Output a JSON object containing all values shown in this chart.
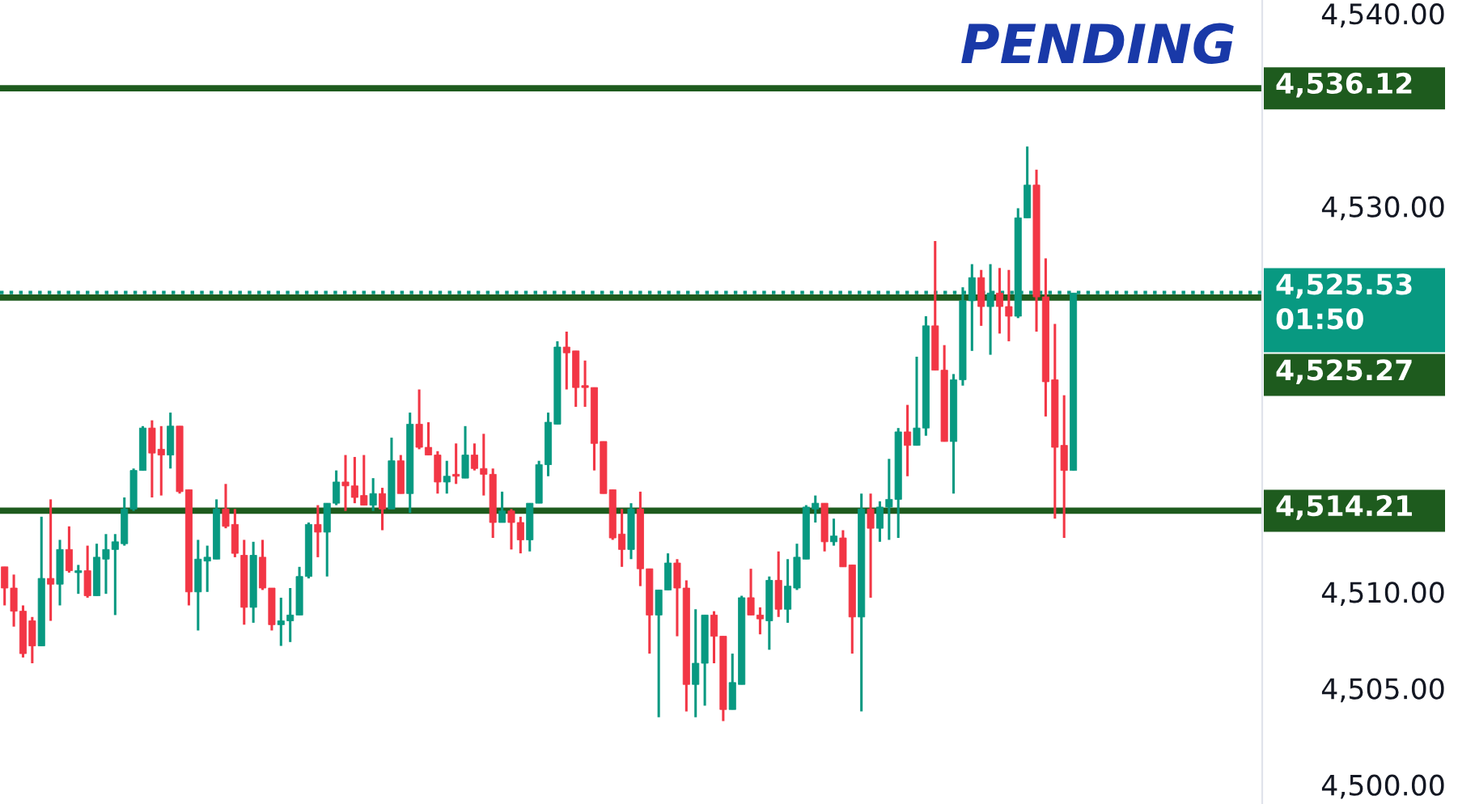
{
  "chart_data": {
    "type": "candlestick",
    "title": "PENDING",
    "categories": [
      null,
      null,
      null,
      null,
      null,
      null,
      null,
      null,
      null,
      null,
      null,
      null,
      null,
      null,
      null,
      null,
      null,
      null,
      null,
      null,
      null,
      null,
      null,
      null,
      null,
      null,
      null,
      null,
      null,
      null,
      null,
      null,
      null,
      null,
      null,
      null,
      null,
      null,
      null,
      null,
      null,
      null,
      null,
      null,
      null,
      null,
      null,
      null,
      null,
      null,
      null,
      null,
      null,
      null,
      null,
      null,
      null,
      null,
      null,
      null,
      null,
      null,
      null,
      null,
      null,
      null,
      null,
      null,
      null,
      null,
      null,
      null,
      null,
      null,
      null,
      null,
      null,
      null,
      null,
      null,
      null,
      null,
      null,
      null,
      null,
      null,
      null,
      null,
      null,
      null,
      null,
      null,
      null,
      null,
      null,
      null,
      null,
      null,
      null,
      null,
      null,
      null,
      null,
      null,
      null,
      null,
      null,
      null,
      null,
      null,
      null,
      null,
      null,
      null,
      null,
      null,
      null,
      null,
      null,
      null,
      null,
      null,
      null,
      null,
      null,
      null,
      null,
      null,
      null,
      null,
      null,
      null,
      null,
      null,
      null,
      null,
      null
    ],
    "ohlc": [
      [
        4511.3,
        4511.3,
        4509.3,
        4510.2
      ],
      [
        4510.2,
        4510.9,
        4508.2,
        4509.0
      ],
      [
        4509.0,
        4509.3,
        4506.6,
        4506.8
      ],
      [
        4508.5,
        4508.7,
        4506.3,
        4507.2
      ],
      [
        4507.2,
        4513.9,
        4507.2,
        4510.7
      ],
      [
        4510.7,
        4514.8,
        4508.5,
        4510.4
      ],
      [
        4510.4,
        4512.7,
        4509.3,
        4512.2
      ],
      [
        4512.2,
        4513.4,
        4511.0,
        4511.1
      ],
      [
        4511.0,
        4511.4,
        4509.9,
        4511.1
      ],
      [
        4511.1,
        4512.4,
        4509.7,
        4509.8
      ],
      [
        4509.8,
        4512.5,
        4509.8,
        4511.8
      ],
      [
        4511.7,
        4513.0,
        4509.9,
        4512.2
      ],
      [
        4512.2,
        4513.0,
        4508.8,
        4512.6
      ],
      [
        4512.5,
        4514.9,
        4512.4,
        4514.3
      ],
      [
        4514.3,
        4516.4,
        4514.2,
        4516.3
      ],
      [
        4516.3,
        4518.6,
        4516.3,
        4518.5
      ],
      [
        4518.5,
        4518.9,
        4514.9,
        4517.2
      ],
      [
        4517.4,
        4518.6,
        4515.0,
        4517.1
      ],
      [
        4517.1,
        4519.3,
        4516.4,
        4518.6
      ],
      [
        4518.6,
        4518.6,
        4515.1,
        4515.2
      ],
      [
        4515.3,
        4515.3,
        4509.3,
        4510.0
      ],
      [
        4510.0,
        4512.7,
        4508.0,
        4511.7
      ],
      [
        4511.6,
        4512.4,
        4510.0,
        4511.8
      ],
      [
        4511.7,
        4514.8,
        4511.7,
        4514.3
      ],
      [
        4514.3,
        4515.6,
        4513.3,
        4513.4
      ],
      [
        4513.5,
        4514.3,
        4511.8,
        4512.0
      ],
      [
        4511.9,
        4512.7,
        4508.3,
        4509.2
      ],
      [
        4509.2,
        4512.6,
        4508.4,
        4511.9
      ],
      [
        4511.8,
        4512.7,
        4510.1,
        4510.2
      ],
      [
        4510.2,
        4510.2,
        4508.0,
        4508.3
      ],
      [
        4508.3,
        4509.7,
        4507.2,
        4508.5
      ],
      [
        4508.5,
        4510.2,
        4507.4,
        4508.8
      ],
      [
        4508.8,
        4511.3,
        4508.8,
        4510.8
      ],
      [
        4510.8,
        4513.6,
        4510.7,
        4513.5
      ],
      [
        4513.5,
        4514.5,
        4511.8,
        4513.1
      ],
      [
        4513.1,
        4514.6,
        4510.8,
        4514.6
      ],
      [
        4514.6,
        4516.3,
        4514.5,
        4515.7
      ],
      [
        4515.7,
        4517.1,
        4514.2,
        4515.5
      ],
      [
        4515.5,
        4517.0,
        4514.6,
        4514.9
      ],
      [
        4515.0,
        4517.1,
        4514.5,
        4514.5
      ],
      [
        4514.5,
        4515.9,
        4514.2,
        4515.1
      ],
      [
        4515.1,
        4515.4,
        4513.2,
        4514.3
      ],
      [
        4514.3,
        4518.0,
        4514.3,
        4516.8
      ],
      [
        4516.8,
        4517.1,
        4515.1,
        4515.1
      ],
      [
        4515.1,
        4519.3,
        4514.1,
        4518.7
      ],
      [
        4518.7,
        4520.5,
        4517.4,
        4517.5
      ],
      [
        4517.5,
        4518.8,
        4517.1,
        4517.1
      ],
      [
        4517.1,
        4517.3,
        4515.1,
        4515.7
      ],
      [
        4515.7,
        4516.8,
        4515.1,
        4516.0
      ],
      [
        4516.1,
        4517.7,
        4515.6,
        4516.0
      ],
      [
        4515.9,
        4518.6,
        4515.9,
        4517.1
      ],
      [
        4517.1,
        4517.7,
        4516.3,
        4516.4
      ],
      [
        4516.4,
        4518.2,
        4515.0,
        4516.1
      ],
      [
        4516.1,
        4516.4,
        4512.8,
        4513.6
      ],
      [
        4513.6,
        4515.2,
        4513.6,
        4514.2
      ],
      [
        4514.2,
        4514.3,
        4512.2,
        4513.6
      ],
      [
        4513.6,
        4513.9,
        4512.0,
        4512.7
      ],
      [
        4512.7,
        4514.6,
        4512.1,
        4514.6
      ],
      [
        4514.6,
        4516.8,
        4514.6,
        4516.6
      ],
      [
        4516.6,
        4519.3,
        4516.0,
        4518.8
      ],
      [
        4518.7,
        4523.0,
        4518.7,
        4522.7
      ],
      [
        4522.7,
        4523.5,
        4520.5,
        4522.4
      ],
      [
        4522.5,
        4522.5,
        4519.6,
        4520.6
      ],
      [
        4520.7,
        4522.0,
        4519.6,
        4520.6
      ],
      [
        4520.6,
        4520.6,
        4516.3,
        4517.7
      ],
      [
        4517.8,
        4517.8,
        4515.1,
        4515.1
      ],
      [
        4515.3,
        4515.3,
        4512.7,
        4512.8
      ],
      [
        4513.0,
        4514.3,
        4511.3,
        4512.2
      ],
      [
        4512.2,
        4514.6,
        4511.7,
        4514.3
      ],
      [
        4514.3,
        4515.2,
        4510.3,
        4511.2
      ],
      [
        4511.2,
        4511.2,
        4506.8,
        4508.8
      ],
      [
        4508.8,
        4510.1,
        4503.5,
        4510.1
      ],
      [
        4510.1,
        4512.0,
        4510.1,
        4511.5
      ],
      [
        4511.5,
        4511.7,
        4507.7,
        4510.2
      ],
      [
        4510.2,
        4510.6,
        4503.8,
        4505.2
      ],
      [
        4505.2,
        4509.1,
        4503.5,
        4506.3
      ],
      [
        4506.3,
        4508.8,
        4504.1,
        4508.8
      ],
      [
        4508.8,
        4509.0,
        4506.3,
        4507.7
      ],
      [
        4507.7,
        4507.7,
        4503.3,
        4503.9
      ],
      [
        4503.9,
        4506.8,
        4503.9,
        4505.3
      ],
      [
        4505.2,
        4509.8,
        4505.2,
        4509.7
      ],
      [
        4509.7,
        4511.2,
        4508.8,
        4508.8
      ],
      [
        4508.8,
        4509.2,
        4507.8,
        4508.6
      ],
      [
        4508.5,
        4510.8,
        4507.0,
        4510.6
      ],
      [
        4510.6,
        4512.1,
        4508.7,
        4509.1
      ],
      [
        4509.1,
        4511.7,
        4508.4,
        4510.3
      ],
      [
        4510.2,
        4512.5,
        4510.1,
        4511.8
      ],
      [
        4511.7,
        4514.5,
        4511.7,
        4514.4
      ],
      [
        4514.3,
        4515.0,
        4513.6,
        4514.6
      ],
      [
        4514.6,
        4514.6,
        4512.1,
        4512.6
      ],
      [
        4512.6,
        4513.8,
        4512.4,
        4512.9
      ],
      [
        4512.8,
        4513.2,
        4511.3,
        4511.3
      ],
      [
        4511.4,
        4511.4,
        4506.8,
        4508.7
      ],
      [
        4508.7,
        4515.1,
        4503.8,
        4514.3
      ],
      [
        4514.3,
        4515.1,
        4509.7,
        4513.3
      ],
      [
        4513.3,
        4514.7,
        4512.6,
        4514.4
      ],
      [
        4514.4,
        4516.9,
        4512.7,
        4514.8
      ],
      [
        4514.8,
        4518.5,
        4512.8,
        4518.3
      ],
      [
        4518.3,
        4519.7,
        4516.0,
        4517.6
      ],
      [
        4517.6,
        4522.2,
        4517.6,
        4518.5
      ],
      [
        4518.5,
        4524.3,
        4518.1,
        4523.8
      ],
      [
        4523.8,
        4528.2,
        4521.5,
        4521.5
      ],
      [
        4521.5,
        4522.8,
        4517.8,
        4517.8
      ],
      [
        4517.8,
        4521.3,
        4515.1,
        4521.0
      ],
      [
        4521.0,
        4525.8,
        4520.7,
        4525.1
      ],
      [
        4525.1,
        4527.0,
        4522.5,
        4526.3
      ],
      [
        4526.3,
        4526.7,
        4523.8,
        4524.8
      ],
      [
        4524.8,
        4527.0,
        4522.3,
        4525.5
      ],
      [
        4525.5,
        4526.8,
        4523.4,
        4524.8
      ],
      [
        4524.8,
        4526.7,
        4523.0,
        4524.3
      ],
      [
        4524.3,
        4529.9,
        4524.2,
        4529.4
      ],
      [
        4529.4,
        4533.1,
        4529.4,
        4531.1
      ],
      [
        4531.1,
        4531.9,
        4523.5,
        4525.3
      ],
      [
        4525.3,
        4527.3,
        4519.1,
        4520.9
      ],
      [
        4521.0,
        4523.9,
        4513.8,
        4517.5
      ],
      [
        4517.6,
        4520.2,
        4512.8,
        4516.3
      ],
      [
        4516.3,
        4525.5,
        4516.3,
        4525.5
      ],
      null,
      null,
      null,
      null,
      null,
      null,
      null,
      null,
      null,
      null,
      null,
      null,
      null,
      null,
      null,
      null,
      null,
      null,
      null,
      null
    ],
    "colors": [
      "#f23645",
      "#f23645",
      "#f23645",
      "#f23645",
      "#089981",
      "#f23645",
      "#089981",
      "#f23645",
      "#089981",
      "#f23645",
      "#089981",
      "#089981",
      "#089981",
      "#089981",
      "#089981",
      "#089981",
      "#f23645",
      "#f23645",
      "#089981",
      "#f23645",
      "#f23645",
      "#089981",
      "#089981",
      "#089981",
      "#f23645",
      "#f23645",
      "#f23645",
      "#089981",
      "#f23645",
      "#f23645",
      "#089981",
      "#089981",
      "#089981",
      "#089981",
      "#f23645",
      "#089981",
      "#089981",
      "#f23645",
      "#f23645",
      "#f23645",
      "#089981",
      "#f23645",
      "#089981",
      "#f23645",
      "#089981",
      "#f23645",
      "#f23645",
      "#f23645",
      "#089981",
      "#f23645",
      "#089981",
      "#f23645",
      "#f23645",
      "#f23645",
      "#089981",
      "#f23645",
      "#f23645",
      "#089981",
      "#089981",
      "#089981",
      "#089981",
      "#f23645",
      "#f23645",
      "#f23645",
      "#f23645",
      "#f23645",
      "#f23645",
      "#f23645",
      "#089981",
      "#f23645",
      "#f23645",
      "#089981",
      "#089981",
      "#f23645",
      "#f23645",
      "#089981",
      "#089981",
      "#f23645",
      "#f23645",
      "#089981",
      "#089981",
      "#f23645",
      "#f23645",
      "#089981",
      "#f23645",
      "#089981",
      "#089981",
      "#089981",
      "#089981",
      "#f23645",
      "#089981",
      "#f23645",
      "#f23645",
      "#089981",
      "#f23645",
      "#089981",
      "#089981",
      "#089981",
      "#f23645",
      "#089981",
      "#089981",
      "#f23645",
      "#f23645",
      "#089981",
      "#089981",
      "#089981",
      "#f23645",
      "#089981",
      "#f23645",
      "#f23645",
      "#089981",
      "#089981",
      "#f23645",
      "#f23645",
      "#f23645",
      "#f23645",
      "#089981",
      null,
      null,
      null,
      null,
      null,
      null,
      null,
      null,
      null,
      null,
      null,
      null,
      null,
      null,
      null,
      null,
      null,
      null,
      null,
      null
    ],
    "ylim": [
      4499.0,
      4540.7
    ],
    "yticks": [
      {
        "value": 4500,
        "label": "4,500.00"
      },
      {
        "value": 4505,
        "label": "4,505.00"
      },
      {
        "value": 4510,
        "label": "4,510.00"
      },
      {
        "value": 4530,
        "label": "4,530.00"
      },
      {
        "value": 4540,
        "label": "4,540.00"
      }
    ],
    "tick_labels": "y",
    "ref_lines": [
      {
        "axis": "y",
        "value": 4536.12,
        "label": "4,536.12",
        "color": "#1e5b1e",
        "line_style": "solid"
      },
      {
        "axis": "y",
        "value": 4525.27,
        "label": "4,525.27",
        "color": "#1e5b1e",
        "line_style": "solid"
      },
      {
        "axis": "y",
        "value": 4525.53,
        "label": "4,525.53\n01:50",
        "color": "#089981",
        "line_style": "dotted"
      },
      {
        "axis": "y",
        "value": 4514.21,
        "label": "4,514.21",
        "color": "#1e5b1e",
        "line_style": "solid"
      }
    ]
  }
}
